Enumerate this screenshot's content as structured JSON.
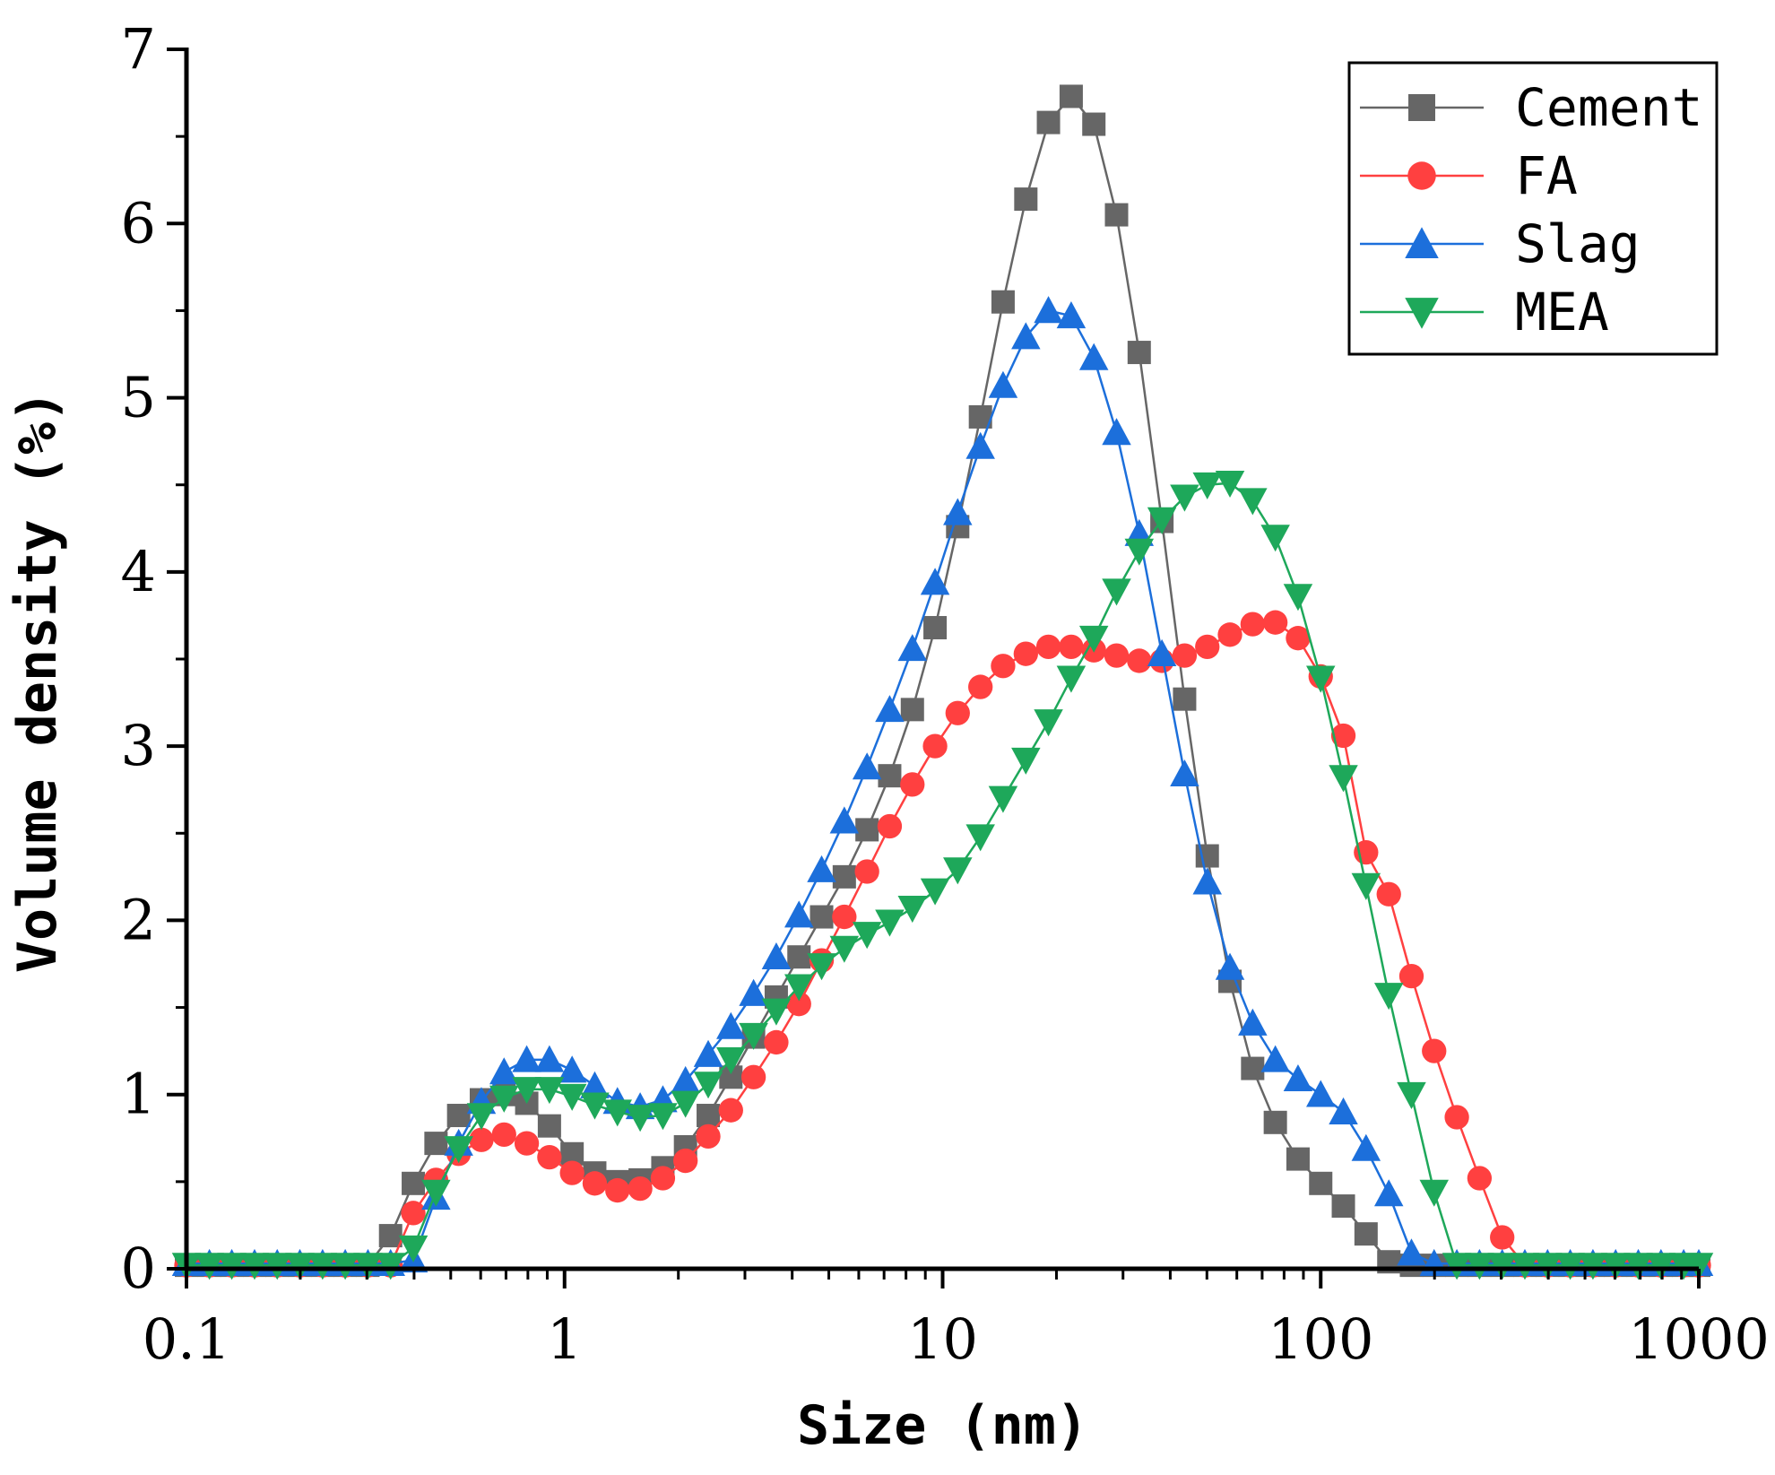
{
  "chart_data": {
    "type": "line",
    "title": "",
    "xlabel": "Size (nm)",
    "ylabel": "Volume density (%)",
    "xscale": "log",
    "xlim": [
      0.1,
      1000
    ],
    "ylim": [
      0,
      7
    ],
    "xticks": [
      0.1,
      1,
      10,
      100,
      1000
    ],
    "xtick_labels": [
      "0.1",
      "1",
      "10",
      "100",
      "1000"
    ],
    "yticks": [
      0,
      1,
      2,
      3,
      4,
      5,
      6,
      7
    ],
    "ytick_labels": [
      "0",
      "1",
      "2",
      "3",
      "4",
      "5",
      "6",
      "7"
    ],
    "legend_position": "top-right",
    "grid": false,
    "x": [
      0.1,
      0.115,
      0.1318,
      0.1514,
      0.1738,
      0.1995,
      0.2291,
      0.263,
      0.302,
      0.3467,
      0.3981,
      0.4571,
      0.5248,
      0.6026,
      0.6918,
      0.7943,
      0.912,
      1.047,
      1.202,
      1.38,
      1.585,
      1.82,
      2.089,
      2.399,
      2.754,
      3.162,
      3.631,
      4.169,
      4.786,
      5.495,
      6.31,
      7.244,
      8.318,
      9.55,
      10.96,
      12.59,
      14.45,
      16.6,
      19.05,
      21.88,
      25.12,
      28.84,
      33.11,
      38.02,
      43.65,
      50.12,
      57.54,
      66.07,
      75.86,
      87.1,
      100,
      114.8,
      131.8,
      151.4,
      173.8,
      199.5,
      229.1,
      263,
      302,
      346.7,
      398.1,
      457.1,
      524.8,
      602.6,
      691.8,
      794.3,
      912,
      1000
    ],
    "series": [
      {
        "name": "Cement",
        "color": "#666666",
        "marker": "square",
        "values": [
          0.02,
          0.02,
          0.02,
          0.02,
          0.02,
          0.02,
          0.02,
          0.02,
          0.02,
          0.19,
          0.49,
          0.72,
          0.88,
          0.97,
          1.0,
          0.95,
          0.82,
          0.66,
          0.55,
          0.5,
          0.51,
          0.58,
          0.7,
          0.88,
          1.1,
          1.33,
          1.56,
          1.79,
          2.02,
          2.25,
          2.52,
          2.83,
          3.21,
          3.68,
          4.26,
          4.89,
          5.55,
          6.14,
          6.58,
          6.73,
          6.57,
          6.05,
          5.26,
          4.29,
          3.27,
          2.37,
          1.65,
          1.15,
          0.84,
          0.63,
          0.49,
          0.36,
          0.2,
          0.04,
          0.02,
          0.02,
          0.02,
          0.02,
          0.02,
          0.02,
          0.02,
          0.02,
          0.02,
          0.02,
          0.02,
          0.02,
          0.02,
          0.02
        ]
      },
      {
        "name": "FA",
        "color": "#ff4040",
        "marker": "circle",
        "values": [
          0.02,
          0.02,
          0.02,
          0.02,
          0.02,
          0.02,
          0.02,
          0.02,
          0.02,
          0.02,
          0.32,
          0.51,
          0.66,
          0.74,
          0.77,
          0.72,
          0.64,
          0.55,
          0.49,
          0.45,
          0.46,
          0.52,
          0.62,
          0.76,
          0.91,
          1.1,
          1.3,
          1.52,
          1.77,
          2.02,
          2.28,
          2.54,
          2.78,
          3.0,
          3.19,
          3.34,
          3.46,
          3.53,
          3.57,
          3.57,
          3.55,
          3.52,
          3.49,
          3.49,
          3.52,
          3.57,
          3.64,
          3.7,
          3.71,
          3.62,
          3.4,
          3.06,
          2.39,
          2.15,
          1.68,
          1.25,
          0.87,
          0.52,
          0.18,
          0.02,
          0.02,
          0.02,
          0.02,
          0.02,
          0.02,
          0.02,
          0.02,
          0.02
        ]
      },
      {
        "name": "Slag",
        "color": "#1c6fdb",
        "marker": "triangle-up",
        "values": [
          0.03,
          0.03,
          0.03,
          0.03,
          0.03,
          0.03,
          0.03,
          0.03,
          0.03,
          0.03,
          0.05,
          0.41,
          0.72,
          0.96,
          1.13,
          1.2,
          1.2,
          1.14,
          1.05,
          0.96,
          0.93,
          0.97,
          1.08,
          1.23,
          1.39,
          1.58,
          1.79,
          2.03,
          2.29,
          2.57,
          2.88,
          3.21,
          3.56,
          3.94,
          4.34,
          4.72,
          5.07,
          5.35,
          5.5,
          5.47,
          5.23,
          4.8,
          4.22,
          3.53,
          2.84,
          2.22,
          1.73,
          1.41,
          1.2,
          1.09,
          1.0,
          0.9,
          0.69,
          0.43,
          0.09,
          0.03,
          0.03,
          0.03,
          0.03,
          0.03,
          0.03,
          0.03,
          0.03,
          0.03,
          0.03,
          0.03,
          0.03,
          0.03
        ]
      },
      {
        "name": "MEA",
        "color": "#1ea85a",
        "marker": "triangle-down",
        "values": [
          0.02,
          0.02,
          0.02,
          0.02,
          0.02,
          0.02,
          0.02,
          0.02,
          0.02,
          0.02,
          0.12,
          0.44,
          0.69,
          0.88,
          0.98,
          1.03,
          1.03,
          0.99,
          0.94,
          0.9,
          0.87,
          0.88,
          0.95,
          1.06,
          1.2,
          1.34,
          1.48,
          1.62,
          1.74,
          1.84,
          1.92,
          1.99,
          2.07,
          2.17,
          2.29,
          2.48,
          2.7,
          2.92,
          3.14,
          3.39,
          3.62,
          3.89,
          4.12,
          4.3,
          4.43,
          4.5,
          4.51,
          4.41,
          4.2,
          3.86,
          3.39,
          2.82,
          2.2,
          1.57,
          1.0,
          0.44,
          0.02,
          0.02,
          0.02,
          0.02,
          0.02,
          0.02,
          0.02,
          0.02,
          0.02,
          0.02,
          0.02,
          0.02
        ]
      }
    ]
  }
}
